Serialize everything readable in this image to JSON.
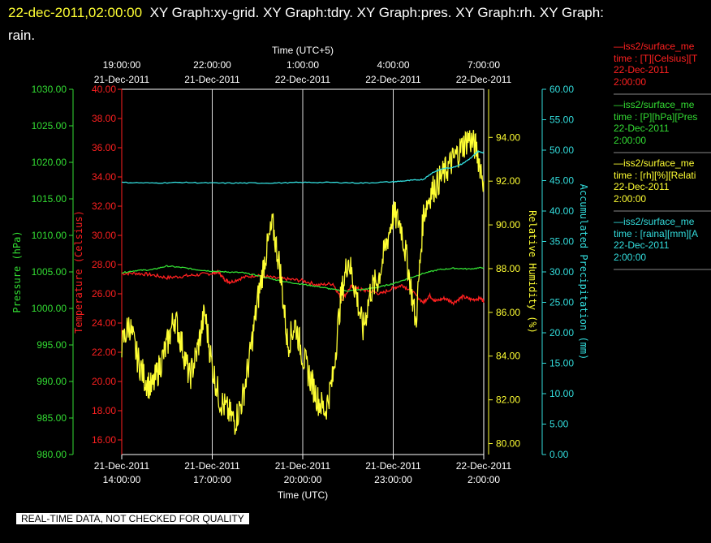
{
  "header": {
    "timestamp": "22-dec-2011,02:00:00",
    "graphs": "XY Graph:xy-grid.  XY Graph:tdry.  XY Graph:pres.  XY Graph:rh.  XY Graph:",
    "graphs_cont": "rain."
  },
  "axes": {
    "top_title": "Time (UTC+5)",
    "bottom_title": "Time (UTC)",
    "top_ticks": [
      {
        "time": "19:00:00",
        "date": "21-Dec-2011"
      },
      {
        "time": "22:00:00",
        "date": "21-Dec-2011"
      },
      {
        "time": "1:00:00",
        "date": "22-Dec-2011"
      },
      {
        "time": "4:00:00",
        "date": "22-Dec-2011"
      },
      {
        "time": "7:00:00",
        "date": "22-Dec-2011"
      }
    ],
    "bottom_ticks": [
      {
        "date": "21-Dec-2011",
        "time": "14:00:00"
      },
      {
        "date": "21-Dec-2011",
        "time": "17:00:00"
      },
      {
        "date": "21-Dec-2011",
        "time": "20:00:00"
      },
      {
        "date": "21-Dec-2011",
        "time": "23:00:00"
      },
      {
        "date": "22-Dec-2011",
        "time": "2:00:00"
      }
    ]
  },
  "legend": [
    {
      "color": "#ff2020",
      "line1": "iss2/surface_me",
      "line2": "time : [T][Celsius][T",
      "line3": "22-Dec-2011",
      "line4": "2:00:00"
    },
    {
      "color": "#33dd33",
      "line1": "iss2/surface_me",
      "line2": "time : [P][hPa][Pres",
      "line3": "22-Dec-2011",
      "line4": "2:00:00"
    },
    {
      "color": "#ffff33",
      "line1": "iss2/surface_me",
      "line2": "time : [rh][%][Relati",
      "line3": "22-Dec-2011",
      "line4": "2:00:00"
    },
    {
      "color": "#33dddd",
      "line1": "iss2/surface_me",
      "line2": "time : [raina][mm][A",
      "line3": "22-Dec-2011",
      "line4": "2:00:00"
    }
  ],
  "footer": {
    "quality_note": "REAL-TIME DATA, NOT CHECKED FOR QUALITY"
  },
  "chart_data": {
    "type": "line",
    "x_unit": "hours after 21-Dec-2011 14:00:00 UTC",
    "xlim": [
      0,
      12
    ],
    "grid": true,
    "y_axes": [
      {
        "id": "pres",
        "label": "Pressure (hPa)",
        "color": "#33dd33",
        "ylim": [
          980,
          1030
        ],
        "ticks": [
          "980.00",
          "985.00",
          "990.00",
          "995.00",
          "1000.00",
          "1005.00",
          "1010.00",
          "1015.00",
          "1020.00",
          "1025.00",
          "1030.00"
        ]
      },
      {
        "id": "tdry",
        "label": "Temperature (Celsius)",
        "color": "#ff2020",
        "ylim": [
          15,
          40
        ],
        "ticks": [
          "16.00",
          "18.00",
          "20.00",
          "22.00",
          "24.00",
          "26.00",
          "28.00",
          "30.00",
          "32.00",
          "34.00",
          "36.00",
          "38.00",
          "40.00"
        ]
      },
      {
        "id": "rh",
        "label": "Relative Humidity (%)",
        "color": "#ffff33",
        "ylim": [
          79.5,
          96.2
        ],
        "ticks": [
          "80.00",
          "82.00",
          "84.00",
          "86.00",
          "88.00",
          "90.00",
          "92.00",
          "94.00"
        ]
      },
      {
        "id": "rain",
        "label": "Accumulated Precipitation (mm)",
        "color": "#33dddd",
        "ylim": [
          0,
          60
        ],
        "ticks": [
          "0.00",
          "5.00",
          "10.00",
          "15.00",
          "20.00",
          "25.00",
          "30.00",
          "35.00",
          "40.00",
          "45.00",
          "50.00",
          "55.00",
          "60.00"
        ]
      }
    ],
    "series": [
      {
        "axis": "tdry",
        "color": "#ff2020",
        "x": [
          0,
          0.5,
          1,
          1.5,
          2,
          2.5,
          3,
          3.2,
          3.4,
          3.6,
          4,
          4.5,
          5,
          5.5,
          6,
          6.5,
          7,
          7.3,
          7.6,
          7.9,
          8.2,
          8.6,
          9,
          9.3,
          9.6,
          10,
          10.2,
          10.4,
          10.7,
          11,
          11.3,
          11.6,
          11.9,
          12
        ],
        "y": [
          27.4,
          27.4,
          27.3,
          27.1,
          27.2,
          27.3,
          27.4,
          27.5,
          27.0,
          26.8,
          27.1,
          27.3,
          27.1,
          27.0,
          26.9,
          26.6,
          26.7,
          25.6,
          26.5,
          26.3,
          26.2,
          26.0,
          26.4,
          26.6,
          26.2,
          25.4,
          25.9,
          25.5,
          25.7,
          25.4,
          25.8,
          25.6,
          25.7,
          25.5
        ]
      },
      {
        "axis": "pres",
        "color": "#33dd33",
        "x": [
          0,
          0.5,
          1,
          1.5,
          2,
          2.5,
          3,
          3.5,
          4,
          4.5,
          5,
          5.5,
          6,
          6.5,
          7,
          7.5,
          8,
          8.5,
          9,
          9.5,
          10,
          10.5,
          11,
          11.5,
          12
        ],
        "y": [
          1004.9,
          1005.2,
          1005.3,
          1005.8,
          1005.6,
          1005.3,
          1005.1,
          1005.0,
          1004.9,
          1004.5,
          1004.0,
          1003.6,
          1003.3,
          1003.0,
          1002.6,
          1002.4,
          1002.6,
          1002.9,
          1003.4,
          1004.1,
          1004.8,
          1005.3,
          1005.5,
          1005.4,
          1005.6
        ]
      },
      {
        "axis": "rh",
        "color": "#ffff33",
        "x": [
          0,
          0.25,
          0.5,
          0.75,
          1,
          1.25,
          1.5,
          1.75,
          2,
          2.25,
          2.5,
          2.75,
          3,
          3.25,
          3.5,
          3.75,
          4,
          4.25,
          4.5,
          4.75,
          5,
          5.25,
          5.5,
          5.75,
          6,
          6.25,
          6.5,
          6.75,
          7,
          7.25,
          7.5,
          7.75,
          8,
          8.25,
          8.5,
          8.75,
          9,
          9.25,
          9.5,
          9.75,
          10,
          10.25,
          10.5,
          10.75,
          11,
          11.25,
          11.5,
          11.75,
          12
        ],
        "y": [
          84.5,
          85.5,
          84.0,
          83.0,
          82.5,
          83.5,
          84.5,
          85.8,
          84.5,
          83.0,
          84.2,
          86.0,
          83.5,
          82.0,
          81.5,
          81.0,
          82.0,
          84.0,
          86.5,
          88.5,
          90.0,
          88.0,
          84.5,
          85.5,
          84.0,
          83.0,
          82.0,
          81.5,
          83.0,
          86.5,
          88.5,
          87.0,
          85.2,
          87.0,
          87.5,
          89.0,
          90.5,
          90.0,
          88.0,
          85.5,
          90.5,
          91.5,
          92.0,
          92.5,
          93.0,
          93.5,
          94.0,
          93.5,
          92.0
        ]
      },
      {
        "axis": "rain",
        "color": "#33dddd",
        "x": [
          0,
          1,
          2,
          3,
          4,
          5,
          6,
          7,
          8,
          9,
          9.5,
          10,
          10.3,
          10.6,
          11,
          11.3,
          11.6,
          11.8,
          12
        ],
        "y": [
          44.7,
          44.6,
          44.7,
          44.6,
          44.6,
          44.6,
          44.7,
          44.7,
          44.6,
          44.8,
          45.0,
          45.2,
          46.3,
          46.9,
          47.2,
          47.8,
          48.8,
          49.8,
          49.6
        ]
      }
    ]
  }
}
